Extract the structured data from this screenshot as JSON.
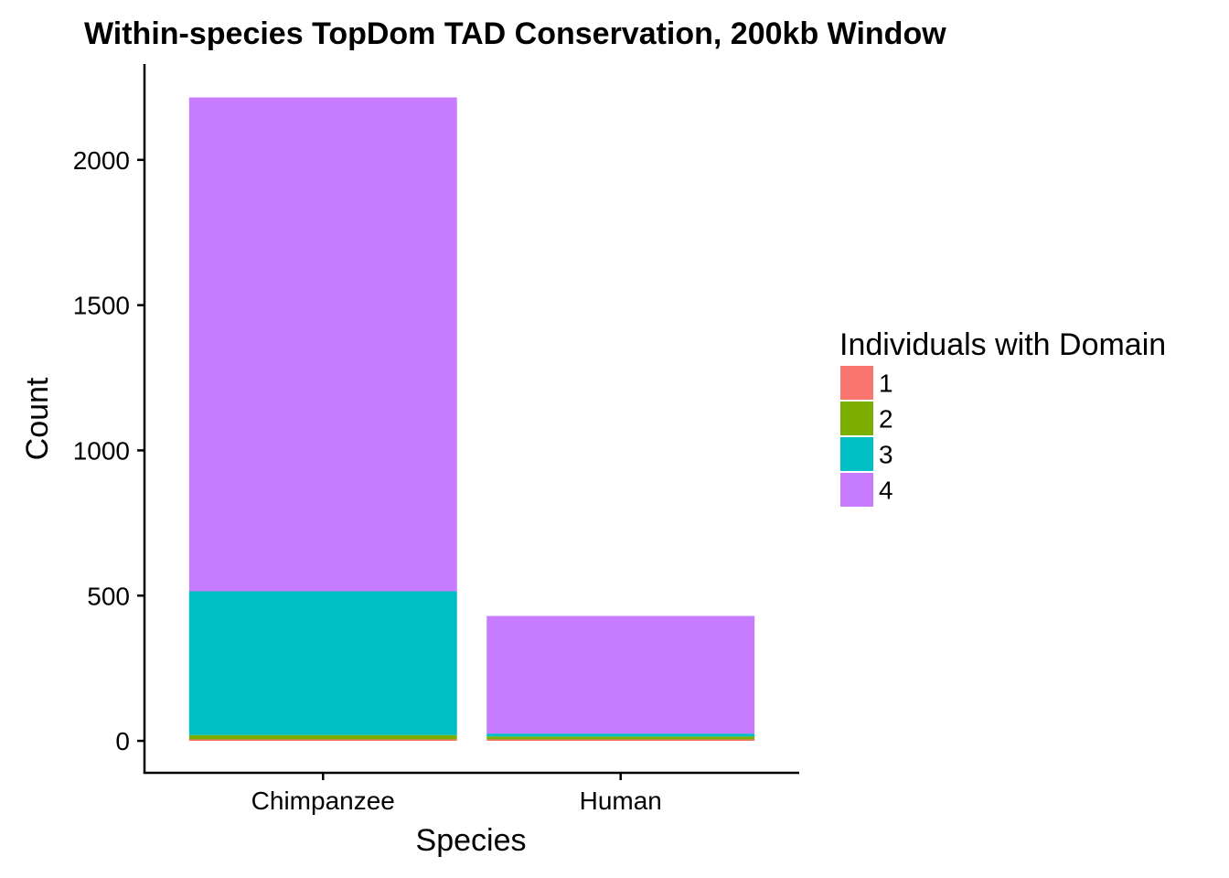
{
  "chart_data": {
    "type": "bar",
    "stacked": true,
    "title": "Within-species TopDom TAD Conservation, 200kb Window",
    "xlabel": "Species",
    "ylabel": "Count",
    "categories": [
      "Chimpanzee",
      "Human"
    ],
    "ylim": [
      -110,
      2330
    ],
    "yticks": [
      0,
      500,
      1000,
      1500,
      2000
    ],
    "grid": false,
    "legend": {
      "title": "Individuals with Domain",
      "placement": "right"
    },
    "series": [
      {
        "name": "1",
        "color": "#F8766D",
        "values": [
          5,
          5
        ]
      },
      {
        "name": "2",
        "color": "#7CAE00",
        "values": [
          15,
          10
        ]
      },
      {
        "name": "3",
        "color": "#00BFC4",
        "values": [
          495,
          10
        ]
      },
      {
        "name": "4",
        "color": "#C77CFF",
        "values": [
          1700,
          405
        ]
      }
    ]
  }
}
